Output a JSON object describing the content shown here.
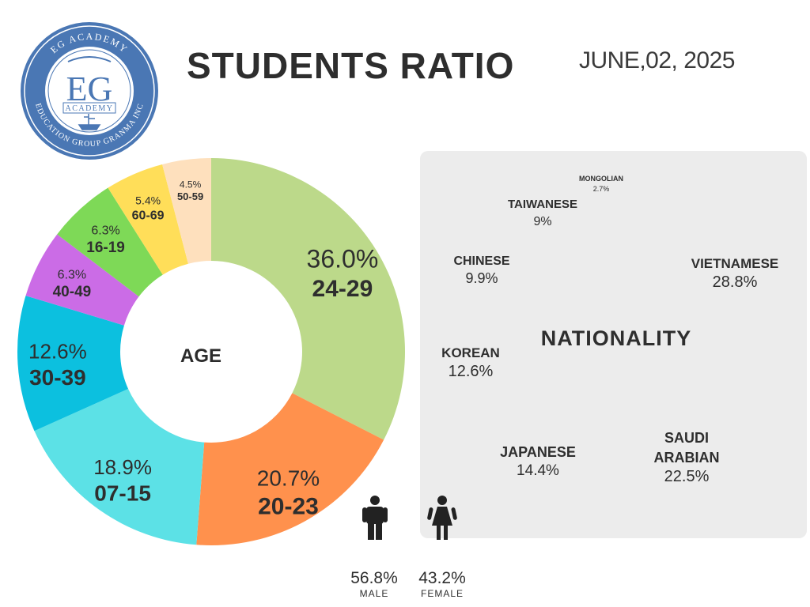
{
  "header": {
    "title": "STUDENTS RATIO",
    "date": "JUNE,02, 2025"
  },
  "logo": {
    "ring_top": "EG ACADEMY",
    "ring_bottom": "EDUCATION GROUP GRANMA INC",
    "main": "EG",
    "sub": "ACADEMY",
    "color": "#3f6fb0"
  },
  "chart_data": [
    {
      "type": "pie",
      "center_label": "AGE",
      "slices": [
        {
          "label": "24-29",
          "pct_text": "36.0%",
          "value": 36.0,
          "color": "#bcd98a"
        },
        {
          "label": "20-23",
          "pct_text": "20.7%",
          "value": 20.7,
          "color": "#ff914d"
        },
        {
          "label": "07-15",
          "pct_text": "18.9%",
          "value": 18.9,
          "color": "#5ce1e6"
        },
        {
          "label": "30-39",
          "pct_text": "12.6%",
          "value": 12.6,
          "color": "#0cc0df"
        },
        {
          "label": "40-49",
          "pct_text": "6.3%",
          "value": 6.3,
          "color": "#cb6ce6"
        },
        {
          "label": "16-19",
          "pct_text": "6.3%",
          "value": 6.3,
          "color": "#7ed957"
        },
        {
          "label": "60-69",
          "pct_text": "5.4%",
          "value": 5.4,
          "color": "#ffde59"
        },
        {
          "label": "50-59",
          "pct_text": "4.5%",
          "value": 4.5,
          "color": "#fee0bd"
        }
      ]
    },
    {
      "type": "table",
      "title": "NATIONALITY",
      "entries": [
        {
          "label": "MONGOLIAN",
          "pct_text": "2.7%",
          "value": 2.7
        },
        {
          "label": "TAIWANESE",
          "pct_text": "9%",
          "value": 9
        },
        {
          "label": "CHINESE",
          "pct_text": "9.9%",
          "value": 9.9
        },
        {
          "label": "VIETNAMESE",
          "pct_text": "28.8%",
          "value": 28.8
        },
        {
          "label": "KOREAN",
          "pct_text": "12.6%",
          "value": 12.6
        },
        {
          "label": "JAPANESE",
          "pct_text": "14.4%",
          "value": 14.4
        },
        {
          "label": "SAUDI ARABIAN",
          "label_line1": "SAUDI",
          "label_line2": "ARABIAN",
          "pct_text": "22.5%",
          "value": 22.5
        }
      ]
    },
    {
      "type": "table",
      "entries": [
        {
          "label": "MALE",
          "pct_text": "56.8%",
          "value": 56.8,
          "icon": "male-person-icon"
        },
        {
          "label": "FEMALE",
          "pct_text": "43.2%",
          "value": 43.2,
          "icon": "female-person-icon"
        }
      ]
    }
  ]
}
